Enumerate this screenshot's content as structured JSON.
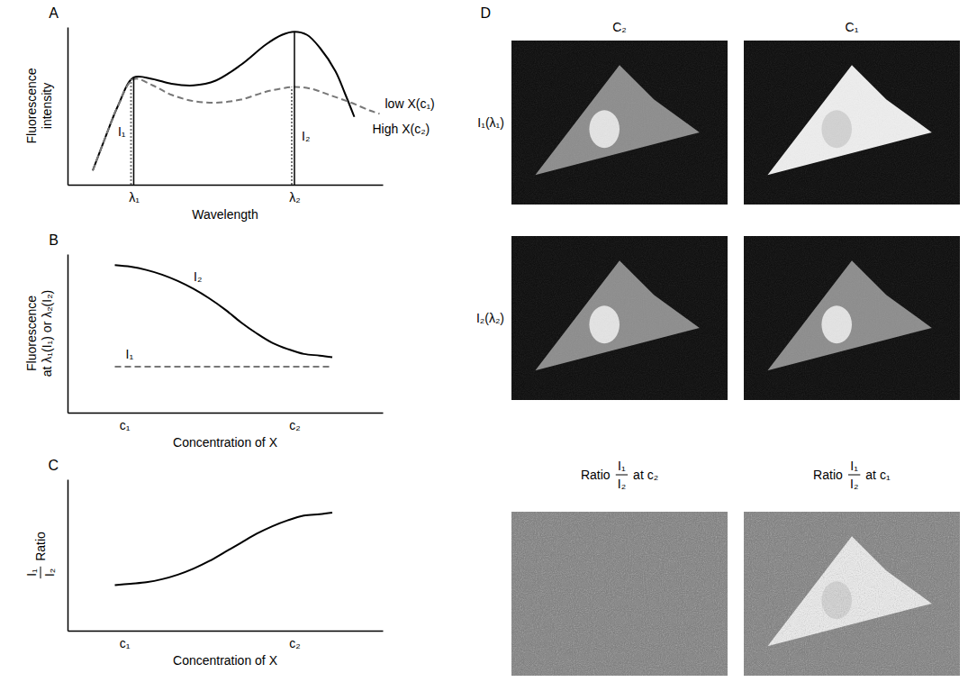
{
  "chart_data": [
    {
      "panel": "A",
      "type": "line",
      "xlabel": "Wavelength",
      "ylabel": "Fluorescence intensity",
      "xlim": [
        0,
        100
      ],
      "ylim": [
        0,
        100
      ],
      "xticks": [
        {
          "value": 21,
          "label": "λ₁"
        },
        {
          "value": 72,
          "label": "λ₂"
        }
      ],
      "tick_labels": "x",
      "series": [
        {
          "name": "low X(c₁)",
          "color": "#000000",
          "line_style": "solid",
          "x": [
            8,
            12,
            16,
            21,
            27,
            33,
            40,
            47,
            55,
            63,
            68,
            72,
            76,
            80,
            85,
            88,
            91
          ],
          "values": [
            9,
            30,
            50,
            68,
            67,
            64,
            63,
            66,
            76,
            89,
            95,
            97,
            95,
            87,
            72,
            58,
            43
          ]
        },
        {
          "name": "High X(c₂)",
          "color": "#777777",
          "line_style": "dashed",
          "x": [
            8,
            12,
            16,
            21,
            27,
            33,
            40,
            47,
            55,
            63,
            68,
            72,
            77,
            83,
            90,
            96,
            99
          ],
          "values": [
            9,
            30,
            50,
            67,
            63,
            57,
            53,
            52,
            54,
            59,
            61,
            62,
            61,
            57,
            52,
            47,
            45
          ]
        }
      ],
      "readouts": [
        {
          "label": "I₁",
          "x": 21,
          "values": [
            68,
            67
          ]
        },
        {
          "label": "I₂",
          "x": 72,
          "values": [
            97,
            62
          ]
        }
      ]
    },
    {
      "panel": "B",
      "type": "line",
      "xlabel": "Concentration of X",
      "ylabel": "Fluorescence at λ₁(I₁) or λ₂(I₂)",
      "xlim": [
        0,
        100
      ],
      "ylim": [
        0,
        100
      ],
      "xticks": [
        {
          "value": 18,
          "label": "c₁"
        },
        {
          "value": 72,
          "label": "c₂"
        }
      ],
      "tick_labels": "x",
      "series": [
        {
          "name": "I₂",
          "color": "#000000",
          "line_style": "solid",
          "x": [
            15,
            20,
            25,
            30,
            35,
            40,
            45,
            50,
            55,
            60,
            65,
            70,
            75,
            80,
            84
          ],
          "values": [
            93,
            92,
            90,
            87,
            83,
            78,
            72,
            65,
            57,
            50,
            44,
            40,
            37,
            36,
            35
          ]
        },
        {
          "name": "I₁",
          "color": "#777777",
          "line_style": "dashed",
          "x": [
            15,
            84
          ],
          "values": [
            29,
            29
          ]
        }
      ]
    },
    {
      "panel": "C",
      "type": "line",
      "xlabel": "Concentration of X",
      "ylabel": {
        "numerator": "I₁",
        "denominator": "I₂",
        "after": "Ratio"
      },
      "xlim": [
        0,
        100
      ],
      "ylim": [
        0,
        100
      ],
      "xticks": [
        {
          "value": 18,
          "label": "c₁"
        },
        {
          "value": 72,
          "label": "c₂"
        }
      ],
      "tick_labels": "x",
      "series": [
        {
          "color": "#000000",
          "line_style": "solid",
          "x": [
            15,
            20,
            25,
            30,
            35,
            40,
            45,
            50,
            55,
            60,
            65,
            70,
            75,
            80,
            84
          ],
          "values": [
            30,
            31,
            32,
            34,
            37,
            41,
            46,
            52,
            58,
            64,
            69,
            73,
            76,
            77,
            78
          ]
        }
      ]
    }
  ],
  "panel_d": {
    "label": "D",
    "columns": [
      "C₂",
      "C₁"
    ],
    "rows": [
      "I₁(λ₁)",
      "I₂(λ₂)"
    ],
    "images": [
      [
        {
          "background": "#0b0b0b",
          "cell": "#8c8c8c",
          "nucleus": "#e4e4e4"
        },
        {
          "background": "#0b0b0b",
          "cell": "#eeeeee",
          "nucleus": "#d2d2d2"
        }
      ],
      [
        {
          "background": "#0b0b0b",
          "cell": "#8c8c8c",
          "nucleus": "#e4e4e4"
        },
        {
          "background": "#0b0b0b",
          "cell": "#8c8c8c",
          "nucleus": "#e4e4e4"
        }
      ]
    ],
    "ratio_titles": [
      {
        "before": "Ratio",
        "numerator": "I₁",
        "denominator": "I₂",
        "after": "at c₂"
      },
      {
        "before": "Ratio",
        "numerator": "I₁",
        "denominator": "I₂",
        "after": "at c₁"
      }
    ],
    "ratio_images": [
      {
        "background": "#7a7a7a",
        "cell": "#7a7a7a",
        "nucleus": "#7a7a7a"
      },
      {
        "background": "#7a7a7a",
        "cell": "#f0f0f0",
        "nucleus": "#d4d4d4"
      }
    ]
  }
}
